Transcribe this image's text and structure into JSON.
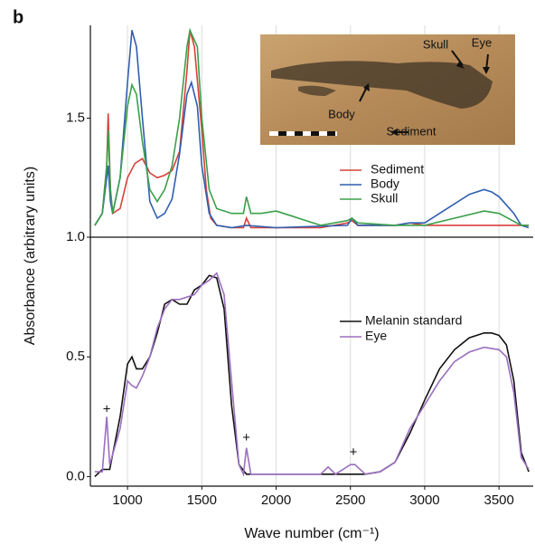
{
  "panel_label": "b",
  "chart_data": [
    {
      "type": "line",
      "xlim": [
        750,
        3730
      ],
      "ylim": [
        1.0,
        1.89
      ],
      "yticks": [
        {
          "value": 1,
          "label": "1.0"
        },
        1.5
      ],
      "legend": "right",
      "inset_labels": [
        "Skull",
        "Eye",
        "Body",
        "Sediment"
      ],
      "series": [
        {
          "name": "Sediment",
          "color": "#d9403a",
          "x": [
            780,
            830,
            860,
            870,
            885,
            900,
            950,
            1000,
            1050,
            1100,
            1150,
            1200,
            1250,
            1300,
            1350,
            1400,
            1420,
            1450,
            1500,
            1530,
            1560,
            1600,
            1700,
            1780,
            1800,
            1830,
            2000,
            2300,
            2480,
            2510,
            2550,
            2800,
            2900,
            3000,
            3400,
            3700
          ],
          "values": [
            1.05,
            1.1,
            1.3,
            1.52,
            1.2,
            1.1,
            1.12,
            1.25,
            1.31,
            1.33,
            1.27,
            1.25,
            1.26,
            1.28,
            1.36,
            1.7,
            1.87,
            1.8,
            1.45,
            1.2,
            1.08,
            1.05,
            1.04,
            1.04,
            1.08,
            1.04,
            1.04,
            1.04,
            1.06,
            1.07,
            1.05,
            1.05,
            1.06,
            1.05,
            1.05,
            1.05
          ]
        },
        {
          "name": "Body",
          "color": "#2f5fb0",
          "x": [
            780,
            830,
            860,
            870,
            885,
            900,
            950,
            1000,
            1030,
            1060,
            1100,
            1150,
            1200,
            1250,
            1300,
            1350,
            1400,
            1430,
            1470,
            1500,
            1550,
            1600,
            1700,
            1800,
            2000,
            2480,
            2510,
            2550,
            2800,
            2900,
            3000,
            3100,
            3200,
            3300,
            3400,
            3450,
            3500,
            3600,
            3650,
            3700
          ],
          "values": [
            1.05,
            1.1,
            1.25,
            1.3,
            1.15,
            1.1,
            1.25,
            1.65,
            1.87,
            1.8,
            1.5,
            1.15,
            1.08,
            1.1,
            1.16,
            1.35,
            1.6,
            1.65,
            1.55,
            1.3,
            1.1,
            1.05,
            1.04,
            1.05,
            1.04,
            1.05,
            1.08,
            1.05,
            1.05,
            1.06,
            1.06,
            1.1,
            1.14,
            1.18,
            1.2,
            1.19,
            1.17,
            1.1,
            1.05,
            1.04
          ]
        },
        {
          "name": "Skull",
          "color": "#3aa04a",
          "x": [
            780,
            830,
            860,
            870,
            885,
            900,
            950,
            1000,
            1030,
            1060,
            1100,
            1150,
            1200,
            1250,
            1300,
            1350,
            1400,
            1420,
            1470,
            1500,
            1550,
            1600,
            1700,
            1780,
            1800,
            1830,
            1900,
            2000,
            2100,
            2200,
            2300,
            2480,
            2510,
            2550,
            2800,
            3000,
            3200,
            3400,
            3500,
            3650,
            3700
          ],
          "values": [
            1.05,
            1.1,
            1.3,
            1.45,
            1.2,
            1.1,
            1.25,
            1.55,
            1.64,
            1.6,
            1.4,
            1.2,
            1.15,
            1.2,
            1.3,
            1.5,
            1.8,
            1.87,
            1.8,
            1.5,
            1.2,
            1.12,
            1.1,
            1.1,
            1.17,
            1.1,
            1.1,
            1.11,
            1.09,
            1.07,
            1.05,
            1.07,
            1.08,
            1.06,
            1.05,
            1.05,
            1.08,
            1.11,
            1.1,
            1.05,
            1.05
          ]
        }
      ]
    },
    {
      "type": "line",
      "xlim": [
        750,
        3730
      ],
      "ylim": [
        -0.04,
        1.0
      ],
      "xticks": [
        1000,
        1500,
        2000,
        2500,
        3000,
        3500
      ],
      "yticks": [
        {
          "value": 0,
          "label": "0.0"
        },
        0.5
      ],
      "x_label": "Wave number (cm⁻¹)",
      "y_label": "Absorbance (arbitrary units)",
      "grid": true,
      "legend": "right",
      "annotations": [
        {
          "text": "+",
          "x": 860,
          "y": 0.28
        },
        {
          "text": "+",
          "x": 1800,
          "y": 0.16
        },
        {
          "text": "+",
          "x": 2520,
          "y": 0.1
        }
      ],
      "series": [
        {
          "name": "Melanin standard",
          "color": "#111111",
          "x": [
            780,
            830,
            880,
            950,
            1000,
            1030,
            1060,
            1100,
            1150,
            1200,
            1250,
            1300,
            1350,
            1400,
            1450,
            1500,
            1550,
            1600,
            1650,
            1700,
            1750,
            1800,
            2000,
            2500,
            2600,
            2700,
            2800,
            2900,
            3000,
            3100,
            3200,
            3300,
            3400,
            3450,
            3500,
            3550,
            3600,
            3650,
            3700
          ],
          "values": [
            0.0,
            0.03,
            0.03,
            0.25,
            0.47,
            0.5,
            0.45,
            0.45,
            0.5,
            0.6,
            0.72,
            0.74,
            0.72,
            0.72,
            0.78,
            0.8,
            0.84,
            0.83,
            0.7,
            0.3,
            0.05,
            0.01,
            0.01,
            0.01,
            0.01,
            0.02,
            0.06,
            0.18,
            0.32,
            0.45,
            0.53,
            0.58,
            0.6,
            0.6,
            0.59,
            0.55,
            0.4,
            0.1,
            0.02
          ]
        },
        {
          "name": "Eye",
          "color": "#9b6fc0",
          "x": [
            780,
            830,
            860,
            880,
            950,
            1000,
            1030,
            1060,
            1100,
            1150,
            1200,
            1250,
            1300,
            1350,
            1400,
            1450,
            1500,
            1550,
            1600,
            1650,
            1700,
            1750,
            1780,
            1800,
            1830,
            2300,
            2350,
            2400,
            2500,
            2530,
            2600,
            2700,
            2800,
            2900,
            3000,
            3100,
            3200,
            3300,
            3400,
            3500,
            3550,
            3600,
            3650,
            3700
          ],
          "values": [
            0.02,
            0.02,
            0.25,
            0.05,
            0.2,
            0.4,
            0.38,
            0.37,
            0.42,
            0.5,
            0.62,
            0.7,
            0.74,
            0.74,
            0.75,
            0.76,
            0.8,
            0.82,
            0.85,
            0.76,
            0.4,
            0.05,
            0.01,
            0.12,
            0.01,
            0.01,
            0.04,
            0.01,
            0.05,
            0.05,
            0.01,
            0.02,
            0.06,
            0.2,
            0.3,
            0.4,
            0.48,
            0.52,
            0.54,
            0.53,
            0.5,
            0.35,
            0.08,
            0.03
          ]
        }
      ]
    }
  ]
}
